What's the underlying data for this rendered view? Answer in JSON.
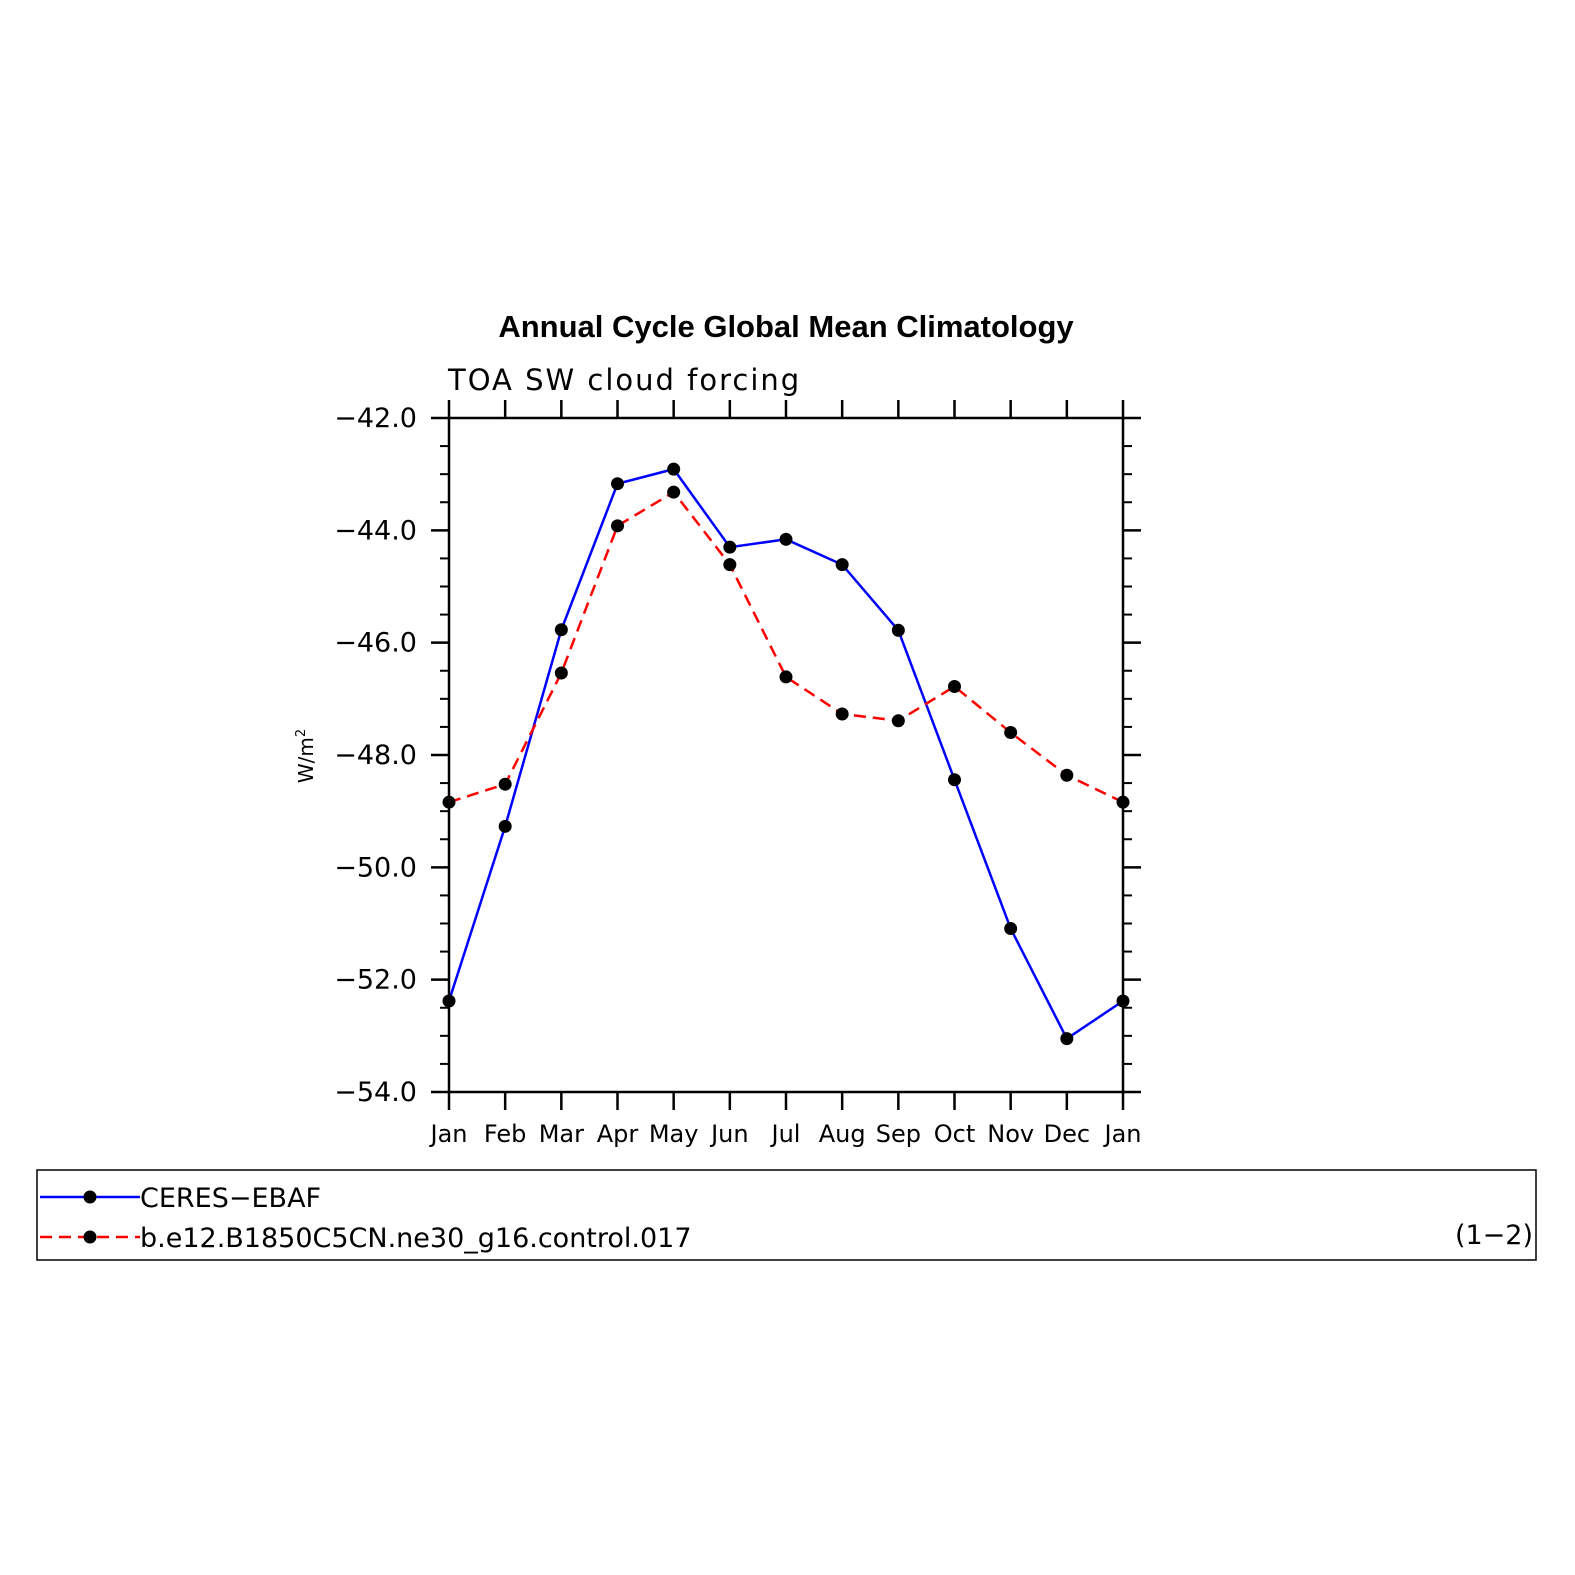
{
  "chart_data": {
    "type": "line",
    "title": "Annual Cycle Global Mean Climatology",
    "subtitle": "TOA SW cloud forcing",
    "ylabel": "W/m",
    "ylabel_sup": "2",
    "xlabel": "",
    "categories": [
      "Jan",
      "Feb",
      "Mar",
      "Apr",
      "May",
      "Jun",
      "Jul",
      "Aug",
      "Sep",
      "Oct",
      "Nov",
      "Dec",
      "Jan"
    ],
    "ylim": [
      -54.0,
      -42.0
    ],
    "yticks": [
      -54.0,
      -52.0,
      -50.0,
      -48.0,
      -46.0,
      -44.0,
      -42.0
    ],
    "ytick_labels": [
      "−54.0",
      "−52.0",
      "−50.0",
      "−48.0",
      "−46.0",
      "−44.0",
      "−42.0"
    ],
    "grid": false,
    "legend_position": "bottom",
    "series": [
      {
        "name": "CERES−EBAF",
        "color": "#0000ff",
        "line_style": "solid",
        "values": [
          -52.38,
          -49.27,
          -45.77,
          -43.17,
          -42.91,
          -44.3,
          -44.16,
          -44.61,
          -45.78,
          -48.44,
          -51.09,
          -53.05,
          -52.38
        ]
      },
      {
        "name": "b.e12.B1850C5CN.ne30_g16.control.017",
        "color": "#ff0000",
        "line_style": "dashed",
        "values": [
          -48.84,
          -48.52,
          -46.54,
          -43.92,
          -43.32,
          -44.61,
          -46.61,
          -47.27,
          -47.39,
          -46.78,
          -47.6,
          -48.36,
          -48.84
        ]
      }
    ],
    "panel_label": "(1−2)"
  }
}
